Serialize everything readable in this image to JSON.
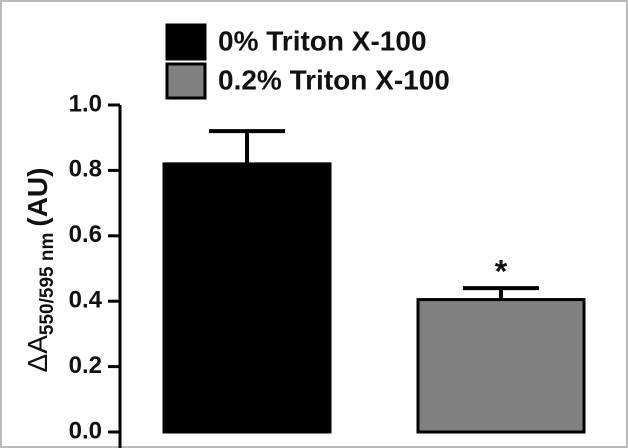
{
  "chart_data": {
    "type": "bar",
    "ylabel_parts": [
      "ΔA",
      "550/595 nm",
      "(AU)"
    ],
    "categories": [
      null
    ],
    "series": [
      {
        "name": "0% Triton X-100",
        "color": "#000000",
        "values": [
          0.82
        ],
        "errors": [
          0.1
        ]
      },
      {
        "name": "0.2% Triton X-100",
        "color": "#808080",
        "values": [
          0.405
        ],
        "errors": [
          0.035
        ]
      }
    ],
    "annotation": "*",
    "ylim": [
      0,
      1.0
    ],
    "yticks": [
      {
        "value": 0,
        "label": "0.0"
      },
      0.2,
      0.4,
      0.6,
      0.8,
      {
        "value": 1.0,
        "label": "1.0"
      }
    ]
  }
}
